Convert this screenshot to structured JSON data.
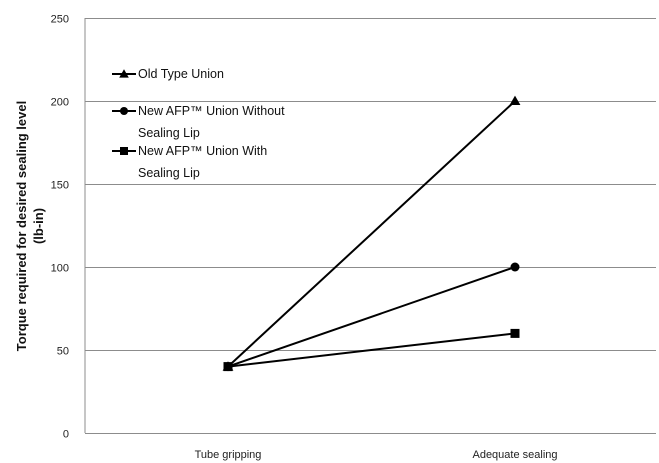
{
  "chart_data": {
    "type": "line",
    "title": "",
    "xlabel": "",
    "ylabel": "Torque required for desired sealing level (lb-in)",
    "ylabel_lines": [
      "Torque required for desired sealing level",
      "(lb-in)"
    ],
    "categories": [
      "Tube gripping",
      "Adequate sealing"
    ],
    "ylim": [
      0,
      250
    ],
    "yticks": [
      0,
      50,
      100,
      150,
      200,
      250
    ],
    "grid": true,
    "legend_position": "top-left",
    "series": [
      {
        "name": "Old Type Union",
        "name_lines": [
          "Old Type Union"
        ],
        "marker": "triangle",
        "values": [
          40,
          200
        ]
      },
      {
        "name": "New AFP™ Union Without Sealing Lip",
        "name_lines": [
          "New AFP™ Union Without",
          "Sealing Lip"
        ],
        "marker": "circle",
        "values": [
          40,
          100
        ]
      },
      {
        "name": "New AFP™ Union With Sealing Lip",
        "name_lines": [
          "New AFP™ Union With",
          "Sealing Lip"
        ],
        "marker": "square",
        "values": [
          40,
          60
        ]
      }
    ],
    "colors": {
      "line": "#000000",
      "grid": "#8c8c8c",
      "axis": "#8c8c8c"
    }
  }
}
